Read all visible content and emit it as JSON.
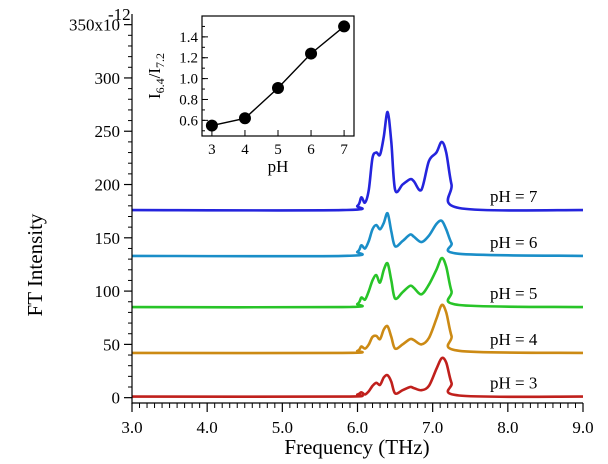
{
  "chart_data": [
    {
      "type": "line",
      "xlabel": "Frequency (THz)",
      "ylabel": "FT Intensity",
      "xlim": [
        3.0,
        9.0
      ],
      "ylim": [
        -5,
        360
      ],
      "x_ticks": [
        "3.0",
        "4.0",
        "5.0",
        "6.0",
        "7.0",
        "8.0",
        "9.0"
      ],
      "x_tick_values": [
        3,
        4,
        5,
        6,
        7,
        8,
        9
      ],
      "y_ticks": [
        "0",
        "50",
        "100",
        "150",
        "200",
        "250",
        "300",
        "350x10"
      ],
      "y_tick_values": [
        0,
        50,
        100,
        150,
        200,
        250,
        300,
        350
      ],
      "y_exponent": "-12",
      "grid": false,
      "series": [
        {
          "name": "pH = 3",
          "color": "#c0201c",
          "baseline": 1,
          "x": [
            3.0,
            5.8,
            6.0,
            6.05,
            6.1,
            6.15,
            6.2,
            6.25,
            6.3,
            6.35,
            6.4,
            6.45,
            6.5,
            6.6,
            6.7,
            6.75,
            6.85,
            6.95,
            7.05,
            7.12,
            7.18,
            7.25,
            7.35,
            9.0
          ],
          "y": [
            1,
            1,
            3,
            5,
            3,
            6,
            11,
            14,
            12,
            19,
            21,
            15,
            4,
            7,
            10,
            9,
            7,
            11,
            27,
            37,
            33,
            14,
            2,
            1
          ]
        },
        {
          "name": "pH = 4",
          "color": "#cc8a14",
          "baseline": 42,
          "x": [
            3.0,
            5.8,
            6.0,
            6.05,
            6.1,
            6.15,
            6.2,
            6.25,
            6.3,
            6.35,
            6.4,
            6.45,
            6.5,
            6.6,
            6.7,
            6.75,
            6.85,
            6.95,
            7.05,
            7.12,
            7.18,
            7.25,
            7.35,
            9.0
          ],
          "y": [
            42,
            42,
            44,
            48,
            46,
            50,
            57,
            58,
            55,
            64,
            67,
            57,
            46,
            50,
            55,
            54,
            50,
            56,
            74,
            87,
            80,
            58,
            44,
            42
          ]
        },
        {
          "name": "pH = 5",
          "color": "#28c428",
          "baseline": 85,
          "x": [
            3.0,
            5.8,
            6.0,
            6.05,
            6.1,
            6.15,
            6.2,
            6.25,
            6.3,
            6.35,
            6.4,
            6.45,
            6.5,
            6.6,
            6.7,
            6.75,
            6.85,
            6.95,
            7.05,
            7.12,
            7.18,
            7.25,
            7.35,
            9.0
          ],
          "y": [
            85,
            85,
            88,
            94,
            92,
            100,
            110,
            115,
            108,
            120,
            126,
            110,
            93,
            99,
            105,
            103,
            97,
            106,
            120,
            131,
            123,
            100,
            87,
            85
          ]
        },
        {
          "name": "pH = 6",
          "color": "#1a8ec8",
          "baseline": 133,
          "x": [
            3.0,
            5.8,
            6.0,
            6.05,
            6.1,
            6.15,
            6.2,
            6.25,
            6.3,
            6.35,
            6.4,
            6.45,
            6.5,
            6.6,
            6.7,
            6.75,
            6.85,
            6.95,
            7.05,
            7.12,
            7.18,
            7.25,
            7.35,
            9.0
          ],
          "y": [
            133,
            133,
            137,
            143,
            140,
            147,
            158,
            162,
            158,
            164,
            173,
            156,
            142,
            147,
            153,
            151,
            146,
            152,
            163,
            166,
            158,
            145,
            135,
            133
          ]
        },
        {
          "name": "pH = 7",
          "color": "#2424dd",
          "baseline": 176,
          "x": [
            3.0,
            5.8,
            6.0,
            6.05,
            6.1,
            6.15,
            6.2,
            6.25,
            6.3,
            6.35,
            6.4,
            6.45,
            6.5,
            6.6,
            6.7,
            6.75,
            6.85,
            6.95,
            7.05,
            7.12,
            7.18,
            7.25,
            7.35,
            9.0
          ],
          "y": [
            176,
            176,
            180,
            188,
            183,
            195,
            225,
            230,
            228,
            245,
            268,
            240,
            195,
            200,
            205,
            203,
            195,
            222,
            230,
            240,
            230,
            200,
            178,
            176
          ]
        }
      ]
    },
    {
      "type": "line",
      "xlabel": "pH",
      "ylabel": "I6.4/I7.2",
      "ylabel_main": "I",
      "ylabel_sub1": "6.4",
      "ylabel_slash": "/I",
      "ylabel_sub2": "7.2",
      "xlim": [
        2.7,
        7.3
      ],
      "ylim": [
        0.45,
        1.6
      ],
      "x_ticks": [
        "3",
        "4",
        "5",
        "6",
        "7"
      ],
      "x_tick_values": [
        3,
        4,
        5,
        6,
        7
      ],
      "y_ticks": [
        "0.6",
        "0.8",
        "1.0",
        "1.2",
        "1.4"
      ],
      "y_tick_values": [
        0.6,
        0.8,
        1.0,
        1.2,
        1.4
      ],
      "x": [
        3,
        4,
        5,
        6,
        7
      ],
      "y": [
        0.55,
        0.62,
        0.91,
        1.24,
        1.5
      ],
      "marker": "circle"
    }
  ]
}
